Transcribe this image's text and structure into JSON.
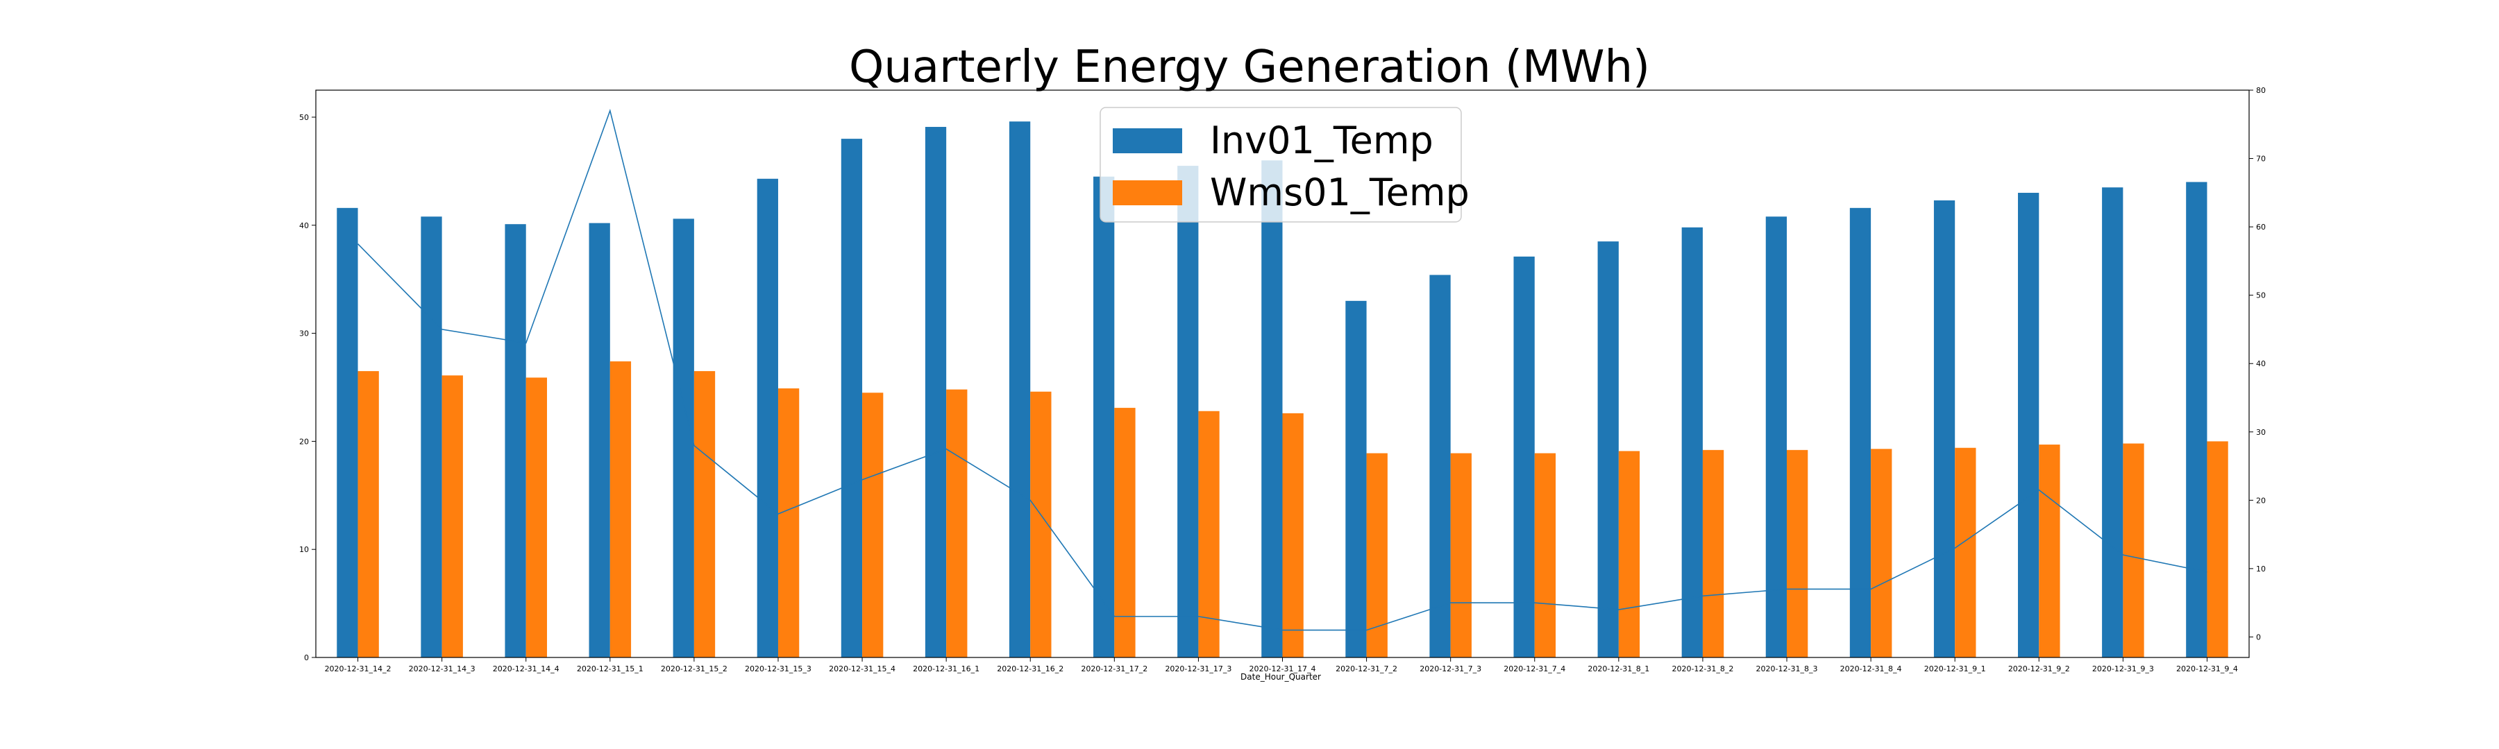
{
  "chart_data": {
    "type": "bar",
    "title": "Quarterly Energy Generation (MWh)",
    "xlabel": "Date_Hour_Quarter",
    "ylabel": "",
    "ylim": [
      0,
      52.5
    ],
    "yticks": [
      0,
      10,
      20,
      30,
      40,
      50
    ],
    "y2lim": [
      -3,
      80
    ],
    "y2ticks": [
      0,
      10,
      20,
      30,
      40,
      50,
      60,
      70,
      80
    ],
    "legend_position": "upper-center",
    "grid": false,
    "categories": [
      "2020-12-31_14_2",
      "2020-12-31_14_3",
      "2020-12-31_14_4",
      "2020-12-31_15_1",
      "2020-12-31_15_2",
      "2020-12-31_15_3",
      "2020-12-31_15_4",
      "2020-12-31_16_1",
      "2020-12-31_16_2",
      "2020-12-31_17_2",
      "2020-12-31_17_3",
      "2020-12-31_17_4",
      "2020-12-31_7_2",
      "2020-12-31_7_3",
      "2020-12-31_7_4",
      "2020-12-31_8_1",
      "2020-12-31_8_2",
      "2020-12-31_8_3",
      "2020-12-31_8_4",
      "2020-12-31_9_1",
      "2020-12-31_9_2",
      "2020-12-31_9_3",
      "2020-12-31_9_4"
    ],
    "series": [
      {
        "name": "Inv01_Temp",
        "color": "#1f77b4",
        "values": [
          41.6,
          40.8,
          40.1,
          40.2,
          40.6,
          44.3,
          48.0,
          49.1,
          49.6,
          44.5,
          45.5,
          46.0,
          33.0,
          35.4,
          37.1,
          38.5,
          39.8,
          40.8,
          41.6,
          42.3,
          43.0,
          43.5,
          44.0
        ]
      },
      {
        "name": "Wms01_Temp",
        "color": "#ff7f0e",
        "values": [
          26.5,
          26.1,
          25.9,
          27.4,
          26.5,
          24.9,
          24.5,
          24.8,
          24.6,
          23.1,
          22.8,
          22.6,
          18.9,
          18.9,
          18.9,
          19.1,
          19.2,
          19.2,
          19.3,
          19.4,
          19.7,
          19.8,
          20.0
        ]
      },
      {
        "axis": "secondary",
        "type": "line",
        "color": "#1f77b4",
        "values": [
          57.5,
          45.0,
          43.0,
          77.0,
          28.0,
          18.0,
          23.0,
          27.5,
          20.0,
          3.0,
          3.0,
          1.0,
          1.0,
          5.0,
          5.0,
          4.0,
          6.0,
          7.0,
          7.0,
          13.0,
          21.5,
          12.0,
          9.5
        ]
      }
    ]
  }
}
